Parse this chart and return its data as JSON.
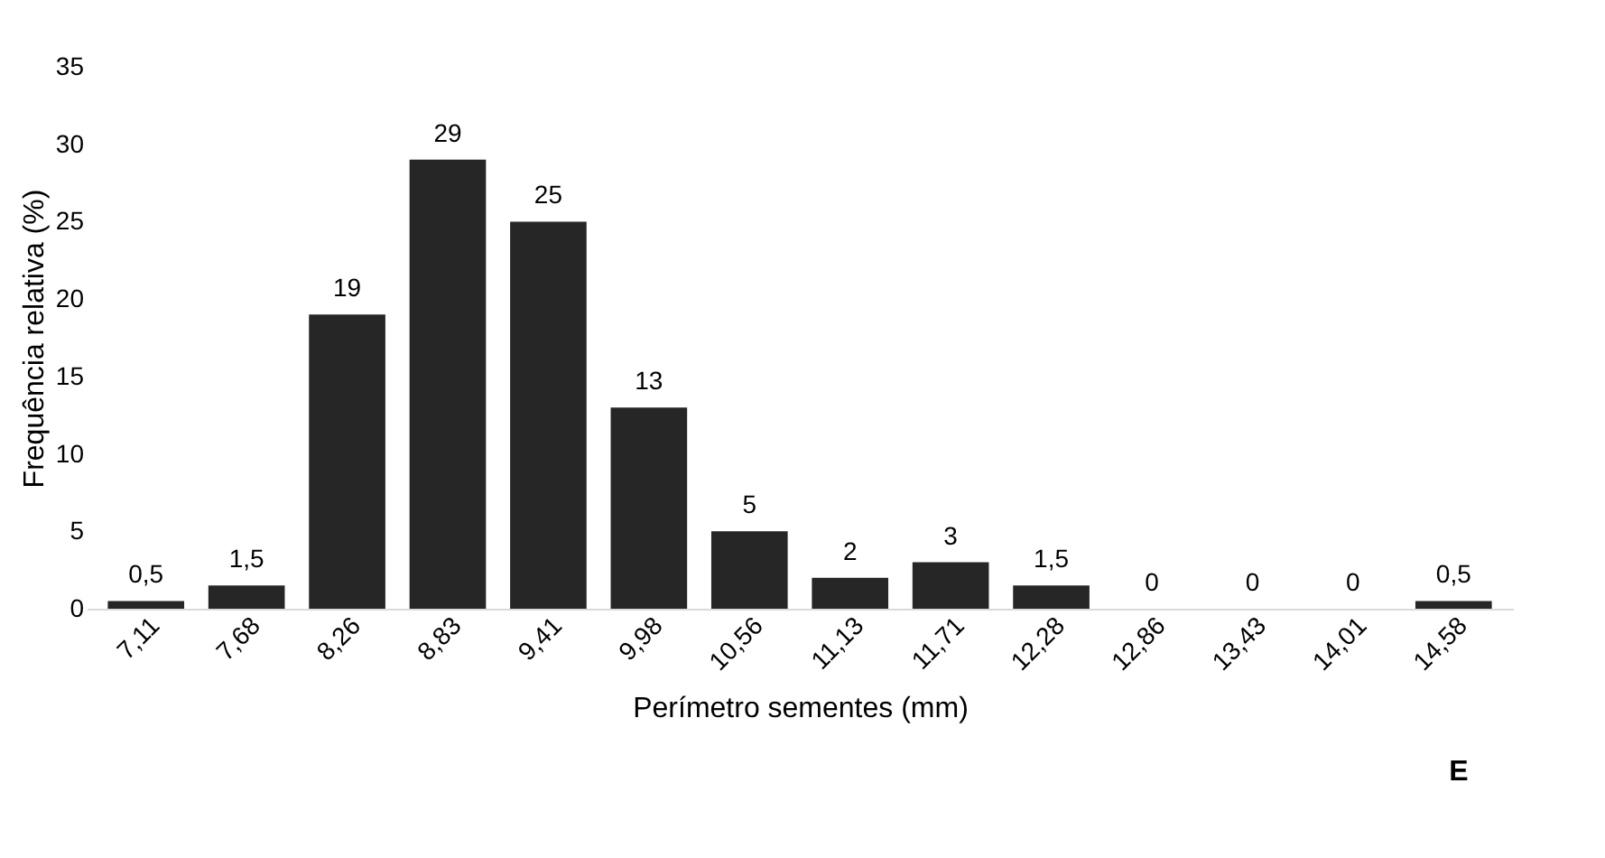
{
  "chart_data": {
    "type": "bar",
    "categories": [
      "7,11",
      "7,68",
      "8,26",
      "8,83",
      "9,41",
      "9,98",
      "10,56",
      "11,13",
      "11,71",
      "12,28",
      "12,86",
      "13,43",
      "14,01",
      "14,58"
    ],
    "values": [
      0.5,
      1.5,
      19,
      29,
      25,
      13,
      5,
      2,
      3,
      1.5,
      0,
      0,
      0,
      0.5
    ],
    "value_labels": [
      "0,5",
      "1,5",
      "19",
      "29",
      "25",
      "13",
      "5",
      "2",
      "3",
      "1,5",
      "0",
      "0",
      "0",
      "0,5"
    ],
    "color": "#262626",
    "xlabel": "Perímetro sementes (mm)",
    "ylabel": "Frequência relativa (%)",
    "ylim": [
      0,
      35
    ],
    "yticks": [
      0,
      5,
      10,
      15,
      20,
      25,
      30,
      35
    ],
    "annotations": [
      "E"
    ],
    "grid": false
  }
}
